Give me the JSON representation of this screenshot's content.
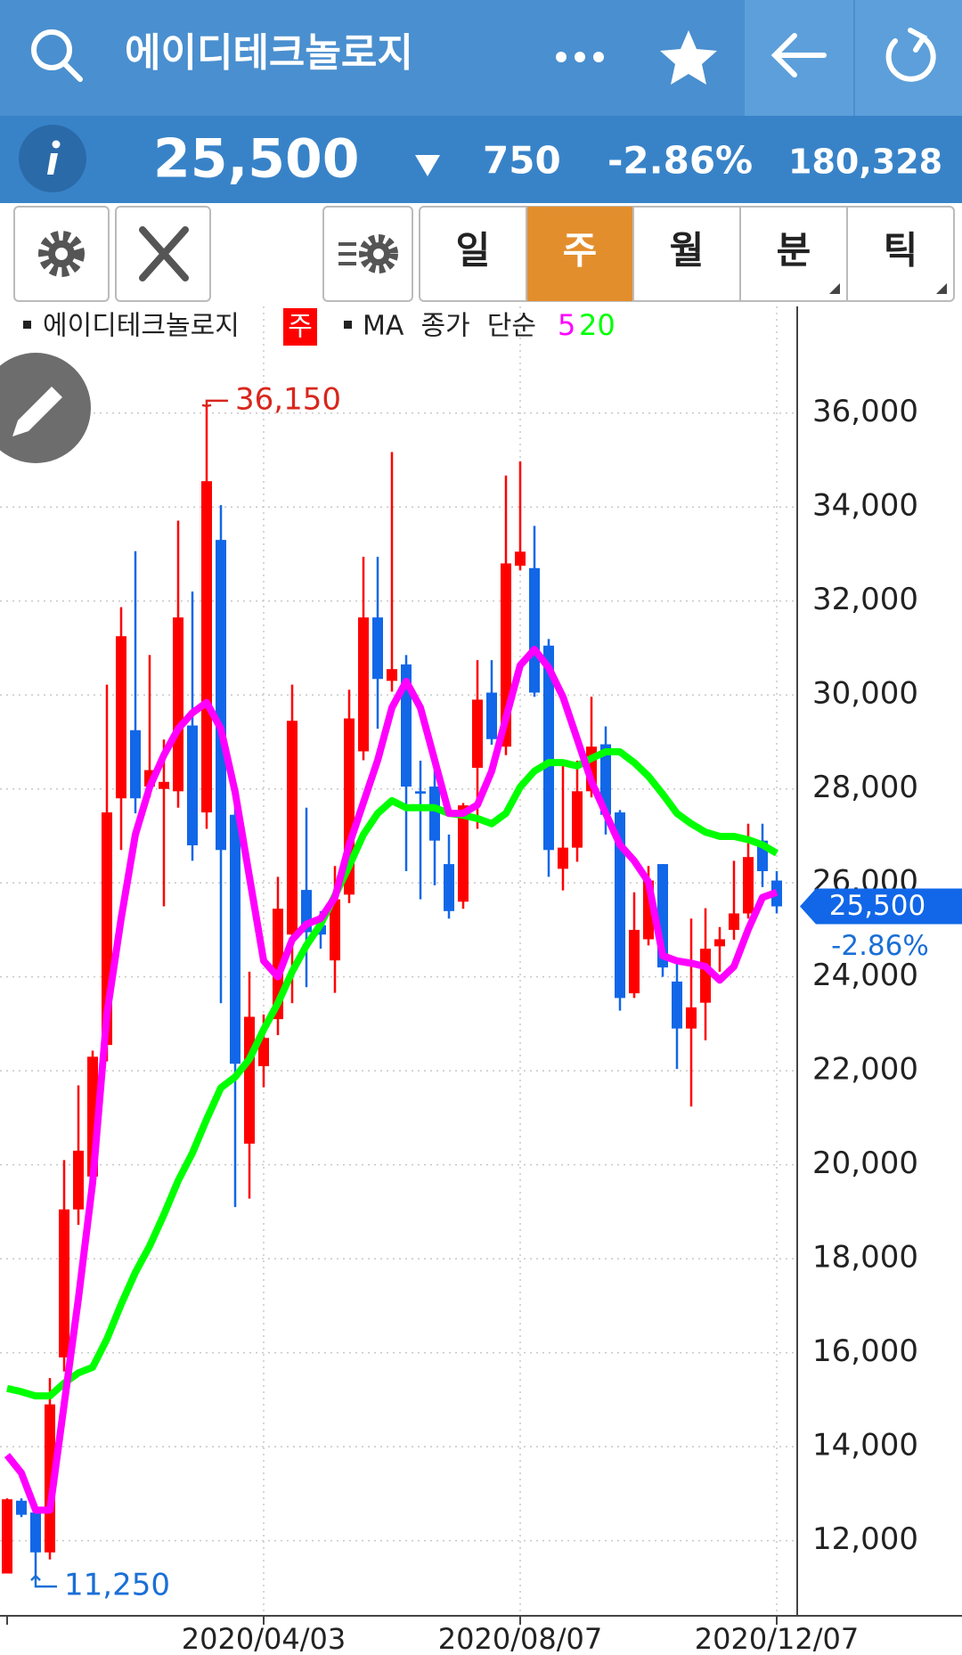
{
  "header": {
    "title": "에이디테크놀로지"
  },
  "quote": {
    "price": "25,500",
    "change": "750",
    "change_pct": "-2.86%",
    "volume": "180,328"
  },
  "toolbar": {
    "tabs": [
      "일",
      "주",
      "월",
      "분",
      "틱"
    ],
    "active": 1
  },
  "chart_data": {
    "type": "candlestick",
    "categories": [
      null,
      null,
      null,
      null,
      null,
      null,
      null,
      null,
      null,
      null,
      null,
      null,
      null,
      null,
      null,
      null,
      null,
      null,
      "2020/04/03",
      null,
      null,
      null,
      null,
      null,
      null,
      null,
      null,
      null,
      null,
      null,
      null,
      null,
      null,
      null,
      null,
      null,
      "2020/08/07",
      null,
      null,
      null,
      null,
      null,
      null,
      null,
      null,
      null,
      null,
      null,
      null,
      null,
      null,
      null,
      null,
      null,
      "2020/12/07"
    ],
    "series": [
      {
        "name": "에이디테크놀로지",
        "type": "candlestick",
        "up_color": "#ff0000",
        "down_color": "#1167e8",
        "open": [
          11300,
          12850,
          12600,
          11750,
          15900,
          19050,
          19750,
          22550,
          27800,
          29250,
          28050,
          28000,
          27950,
          29350,
          27500,
          33300,
          27450,
          20450,
          22100,
          23100,
          24900,
          25850,
          25100,
          24350,
          25750,
          28800,
          31650,
          30300,
          30650,
          27950,
          28050,
          26400,
          25600,
          28450,
          30050,
          28900,
          32750,
          32700,
          31050,
          26300,
          26750,
          27950,
          28950,
          27500,
          23650,
          24800,
          26400,
          23900,
          22900,
          23450,
          24650,
          25000,
          25350,
          26900,
          26050
        ],
        "high": [
          12900,
          12900,
          12700,
          15460,
          20100,
          21690,
          22430,
          30220,
          31870,
          33060,
          30850,
          29050,
          33710,
          32200,
          36150,
          34040,
          27700,
          24110,
          23200,
          26130,
          30220,
          27600,
          25400,
          26360,
          30110,
          32940,
          32940,
          35170,
          30850,
          28600,
          28550,
          27030,
          27700,
          30740,
          30740,
          34670,
          34970,
          33600,
          31190,
          28610,
          28600,
          29960,
          29330,
          27550,
          25800,
          26360,
          26400,
          24340,
          25240,
          25460,
          25060,
          26470,
          27260,
          27260,
          26250
        ],
        "low": [
          11300,
          12500,
          11250,
          11600,
          15600,
          18720,
          19300,
          22200,
          26700,
          27480,
          27820,
          25500,
          27600,
          26470,
          27150,
          23440,
          19100,
          19280,
          21650,
          22760,
          23440,
          23780,
          24600,
          23660,
          25570,
          28610,
          29280,
          30070,
          26250,
          25650,
          25950,
          25240,
          25450,
          27150,
          28940,
          28720,
          32650,
          29960,
          26130,
          25840,
          26450,
          27820,
          27030,
          23280,
          23550,
          24670,
          24000,
          22040,
          21240,
          22650,
          24110,
          24790,
          25240,
          25910,
          25350
        ],
        "close": [
          12880,
          12550,
          11750,
          14900,
          19050,
          20300,
          22300,
          27500,
          31250,
          27800,
          28400,
          28150,
          31650,
          26800,
          34550,
          26700,
          22150,
          23150,
          22700,
          25450,
          29450,
          24950,
          24900,
          25650,
          29500,
          31650,
          30340,
          30550,
          28050,
          27900,
          26900,
          25400,
          27650,
          29900,
          29060,
          32800,
          33050,
          30050,
          26700,
          26750,
          27950,
          28900,
          27450,
          23550,
          25000,
          26050,
          24200,
          22900,
          23350,
          24600,
          24800,
          25350,
          26550,
          26250,
          25500
        ]
      },
      {
        "name": "5",
        "type": "line",
        "color": "#ff00ff",
        "values": [
          13820,
          13440,
          12650,
          12650,
          14900,
          17150,
          19620,
          23210,
          25240,
          27030,
          28040,
          28720,
          29280,
          29620,
          29840,
          29280,
          27930,
          26130,
          24340,
          24000,
          24790,
          25120,
          25240,
          25690,
          26810,
          27710,
          28610,
          29730,
          30290,
          29730,
          28610,
          27480,
          27480,
          27660,
          28380,
          29510,
          30630,
          30970,
          30580,
          29960,
          29060,
          28160,
          27480,
          26810,
          26470,
          26020,
          24450,
          24340,
          24290,
          24220,
          23930,
          24220,
          25010,
          25690,
          25800
        ]
      },
      {
        "name": "20",
        "type": "line",
        "color": "#00ff00",
        "values": [
          15240,
          15170,
          15080,
          15080,
          15350,
          15570,
          15690,
          16290,
          17030,
          17710,
          18270,
          18940,
          19660,
          20250,
          20970,
          21640,
          21870,
          22250,
          22880,
          23440,
          24110,
          24670,
          25120,
          25730,
          26360,
          27030,
          27480,
          27750,
          27600,
          27600,
          27600,
          27480,
          27440,
          27370,
          27260,
          27480,
          28040,
          28380,
          28560,
          28560,
          28490,
          28650,
          28790,
          28790,
          28560,
          28270,
          27890,
          27480,
          27260,
          27080,
          26990,
          26990,
          26920,
          26810,
          26630
        ]
      }
    ],
    "legend_badge": "주",
    "ma_label": "MA  종가  단순",
    "ylim": [
      10400,
      38270
    ],
    "yticks": [
      {
        "value": 12000,
        "label": "12,000"
      },
      {
        "value": 14000,
        "label": "14,000"
      },
      {
        "value": 16000,
        "label": "16,000"
      },
      {
        "value": 18000,
        "label": "18,000"
      },
      {
        "value": 20000,
        "label": "20,000"
      },
      {
        "value": 22000,
        "label": "22,000"
      },
      {
        "value": 24000,
        "label": "24,000"
      },
      {
        "value": 26000,
        "label": "26,000"
      },
      {
        "value": 28000,
        "label": "28,000"
      },
      {
        "value": 30000,
        "label": "30,000"
      },
      {
        "value": 32000,
        "label": "32,000"
      },
      {
        "value": 34000,
        "label": "34,000"
      },
      {
        "value": 36000,
        "label": "36,000"
      }
    ],
    "grid": true,
    "annotations": [
      {
        "value": 36150,
        "label": "36,150",
        "color": "#d9261c",
        "kind": "high"
      },
      {
        "value": 11250,
        "label": "11,250",
        "color": "#1a6fd6",
        "kind": "low"
      }
    ],
    "last_price": {
      "value": 25500,
      "label": "25,500"
    },
    "last_change": "-2.86%"
  }
}
